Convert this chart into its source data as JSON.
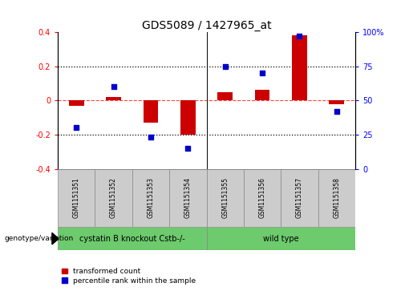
{
  "title": "GDS5089 / 1427965_at",
  "samples": [
    "GSM1151351",
    "GSM1151352",
    "GSM1151353",
    "GSM1151354",
    "GSM1151355",
    "GSM1151356",
    "GSM1151357",
    "GSM1151358"
  ],
  "transformed_count": [
    -0.03,
    0.02,
    -0.13,
    -0.2,
    0.05,
    0.06,
    0.38,
    -0.02
  ],
  "percentile_rank": [
    30,
    60,
    23,
    15,
    75,
    70,
    97,
    42
  ],
  "groups": [
    {
      "label": "cystatin B knockout Cstb-/-",
      "indices": [
        0,
        1,
        2,
        3
      ],
      "color": "#6dca6d"
    },
    {
      "label": "wild type",
      "indices": [
        4,
        5,
        6,
        7
      ],
      "color": "#6dca6d"
    }
  ],
  "group_boundary": 3.5,
  "bar_color": "#cc0000",
  "scatter_color": "#0000cc",
  "ylim_left": [
    -0.4,
    0.4
  ],
  "ylim_right": [
    0,
    100
  ],
  "yticks_left": [
    -0.4,
    -0.2,
    0.0,
    0.2,
    0.4
  ],
  "yticks_right": [
    0,
    25,
    50,
    75,
    100
  ],
  "ytick_labels_right": [
    "0",
    "25",
    "50",
    "75",
    "100%"
  ],
  "dotted_lines": [
    0.2,
    -0.2
  ],
  "zero_line_color": "#ff4444",
  "background_color": "#ffffff",
  "plot_bg": "#ffffff",
  "title_fontsize": 10,
  "tick_label_fontsize": 7,
  "legend_red_label": "transformed count",
  "legend_blue_label": "percentile rank within the sample",
  "genotype_label": "genotype/variation",
  "sample_box_color": "#cccccc"
}
